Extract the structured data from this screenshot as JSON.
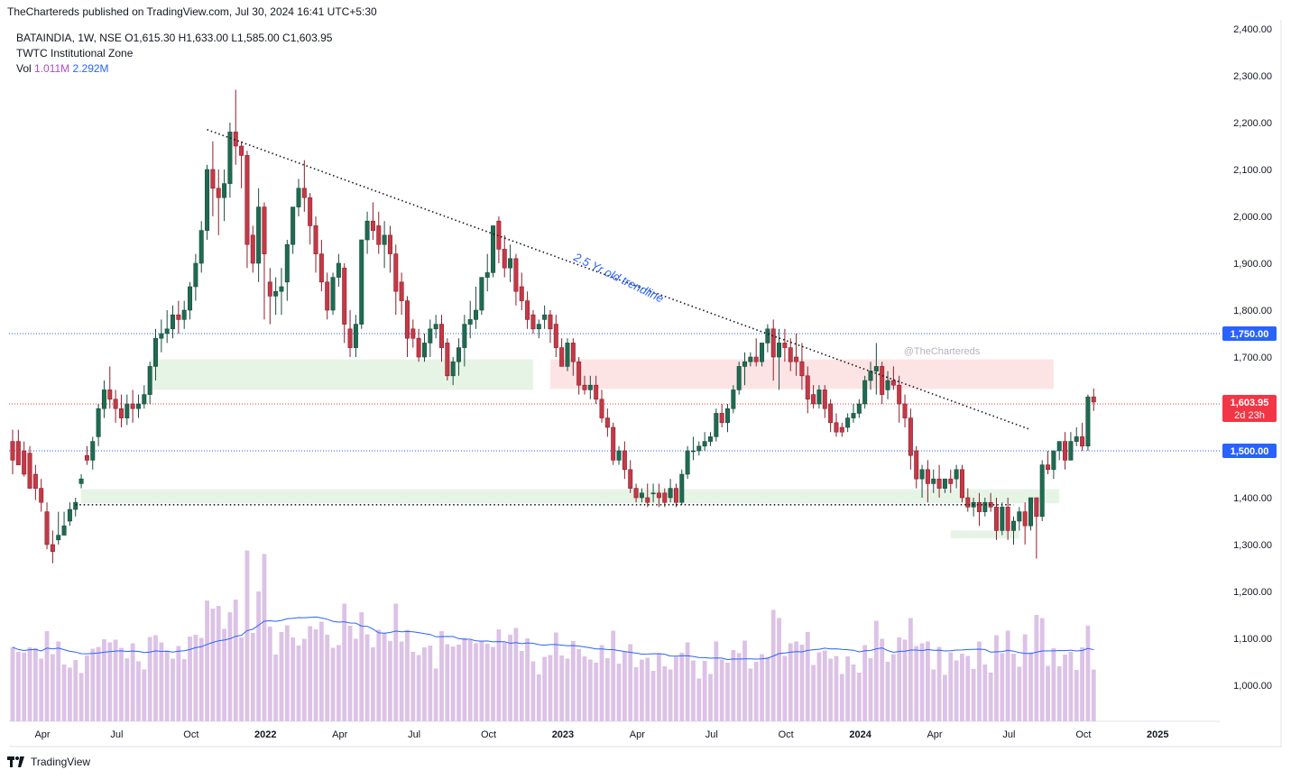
{
  "header": {
    "published": "TheChartereds published on TradingView.com, Jul 30, 2024 16:41 UTC+5:30"
  },
  "legend": {
    "symbol_line": "BATAINDIA, 1W, NSE  O1,615.30  H1,633.00  L1,585.00  C1,603.95",
    "indicator": "TWTC Institutional Zone",
    "vol_label": "Vol",
    "vol_value_1": "1.011M",
    "vol_value_2": "2.292M"
  },
  "footer": {
    "brand": "TradingView"
  },
  "watermark": "@TheChartereds",
  "trendline_label": "2.5 Yr old trendline",
  "colors": {
    "up": "#26a69a",
    "up_dark": "#1e5e4a",
    "down": "#ef5350",
    "down_dark": "#b5323f",
    "candle_body_up": "#1f6b52",
    "candle_body_down": "#c53947",
    "volume": "#dcc2e6",
    "vol_ma": "#2962ff",
    "last_price": "#f23645",
    "level_blue": "#2962ff",
    "zone_green": "#e6f4e6",
    "zone_red": "#fde4e4"
  },
  "chart_data": {
    "type": "candlestick",
    "symbol": "BATAINDIA",
    "timeframe": "1W",
    "exchange": "NSE",
    "ohlc_last": {
      "open": 1615.3,
      "high": 1633.0,
      "low": 1585.0,
      "close": 1603.95
    },
    "y_axis": {
      "range": [
        920,
        2420
      ],
      "ticks": [
        "2,400.00",
        "2,300.00",
        "2,200.00",
        "2,100.00",
        "2,000.00",
        "1,900.00",
        "1,800.00",
        "1,700.00",
        "1,600.00",
        "1,500.00",
        "1,400.00",
        "1,300.00",
        "1,200.00",
        "1,100.00",
        "1,000.00"
      ],
      "tick_values": [
        2400,
        2300,
        2200,
        2100,
        2000,
        1900,
        1800,
        1700,
        1600,
        1500,
        1400,
        1300,
        1200,
        1100,
        1000
      ]
    },
    "x_axis": {
      "labels": [
        "Apr",
        "Jul",
        "Oct",
        "2022",
        "Apr",
        "Jul",
        "Oct",
        "2023",
        "Apr",
        "Jul",
        "Oct",
        "2024",
        "Apr",
        "Jul",
        "Oct",
        "2025"
      ],
      "label_weeks": [
        0,
        13,
        26,
        39,
        52,
        65,
        78,
        91,
        104,
        117,
        130,
        143,
        156,
        169,
        182,
        195
      ],
      "bold": [
        false,
        false,
        false,
        true,
        false,
        false,
        false,
        true,
        false,
        false,
        false,
        true,
        false,
        false,
        false,
        true
      ]
    },
    "price_labels": [
      {
        "text": "1,750.00",
        "value": 1750,
        "kind": "level"
      },
      {
        "text": "1,603.95",
        "value": 1603.95,
        "kind": "last",
        "countdown": "2d 23h"
      },
      {
        "text": "1,500.00",
        "value": 1500,
        "kind": "level"
      }
    ],
    "horizontal_levels": [
      1750,
      1600,
      1500
    ],
    "zones": [
      {
        "kind": "demand",
        "week_from": 24,
        "week_to": 91,
        "low": 1630,
        "high": 1695
      },
      {
        "kind": "supply",
        "week_from": 94,
        "week_to": 182,
        "low": 1632,
        "high": 1695
      },
      {
        "kind": "demand",
        "week_from": 12,
        "week_to": 183,
        "low": 1388,
        "high": 1418
      },
      {
        "kind": "demand",
        "week_from": 164,
        "week_to": 176,
        "low": 1313,
        "high": 1330
      }
    ],
    "trendlines": [
      {
        "from": [
          34,
          2185
        ],
        "to": [
          178,
          1545
        ]
      },
      {
        "from": [
          11,
          1385
        ],
        "to": [
          175,
          1385
        ]
      }
    ],
    "first_week_date": "2021-03-01",
    "candles": [
      [
        1520,
        1545,
        1480,
        1450
      ],
      [
        1520,
        1545,
        1470,
        1485
      ],
      [
        1500,
        1520,
        1450,
        1445
      ],
      [
        1495,
        1510,
        1420,
        1450
      ],
      [
        1450,
        1470,
        1420,
        1395
      ],
      [
        1420,
        1440,
        1390,
        1370
      ],
      [
        1370,
        1390,
        1300,
        1290
      ],
      [
        1300,
        1330,
        1285,
        1260
      ],
      [
        1310,
        1370,
        1320,
        1300
      ],
      [
        1320,
        1370,
        1340,
        1330
      ],
      [
        1350,
        1390,
        1375,
        1340
      ],
      [
        1375,
        1400,
        1390,
        1360
      ],
      [
        1430,
        1450,
        1440,
        1420
      ],
      [
        1490,
        1510,
        1480,
        1470
      ],
      [
        1480,
        1530,
        1520,
        1460
      ],
      [
        1530,
        1600,
        1590,
        1510
      ],
      [
        1590,
        1650,
        1630,
        1570
      ],
      [
        1630,
        1680,
        1610,
        1590
      ],
      [
        1610,
        1630,
        1590,
        1560
      ],
      [
        1590,
        1620,
        1570,
        1550
      ],
      [
        1570,
        1620,
        1600,
        1555
      ],
      [
        1600,
        1630,
        1590,
        1560
      ],
      [
        1590,
        1620,
        1600,
        1570
      ],
      [
        1600,
        1640,
        1620,
        1590
      ],
      [
        1620,
        1690,
        1680,
        1600
      ],
      [
        1680,
        1760,
        1740,
        1650
      ],
      [
        1740,
        1780,
        1750,
        1710
      ],
      [
        1750,
        1800,
        1760,
        1730
      ],
      [
        1760,
        1810,
        1790,
        1740
      ],
      [
        1790,
        1820,
        1780,
        1750
      ],
      [
        1780,
        1820,
        1800,
        1760
      ],
      [
        1800,
        1860,
        1850,
        1780
      ],
      [
        1850,
        1920,
        1900,
        1820
      ],
      [
        1900,
        1990,
        1970,
        1880
      ],
      [
        1970,
        2110,
        2100,
        1950
      ],
      [
        2100,
        2160,
        2060,
        2000
      ],
      [
        2060,
        2100,
        2040,
        1960
      ],
      [
        2040,
        2100,
        2070,
        1990
      ],
      [
        2070,
        2200,
        2180,
        2040
      ],
      [
        2180,
        2270,
        2150,
        2110
      ],
      [
        2150,
        2160,
        2130,
        2060
      ],
      [
        2130,
        2140,
        1940,
        1890
      ],
      [
        1960,
        1980,
        1900,
        1880
      ],
      [
        1900,
        2060,
        2020,
        1860
      ],
      [
        2020,
        2030,
        1920,
        1780
      ],
      [
        1860,
        1890,
        1830,
        1770
      ],
      [
        1830,
        1870,
        1840,
        1790
      ],
      [
        1840,
        1890,
        1850,
        1790
      ],
      [
        1860,
        1950,
        1940,
        1820
      ],
      [
        1940,
        2000,
        2020,
        1920
      ],
      [
        2020,
        2080,
        2060,
        2000
      ],
      [
        2060,
        2120,
        2040,
        2010
      ],
      [
        2040,
        2050,
        1980,
        1940
      ],
      [
        1980,
        2000,
        1920,
        1880
      ],
      [
        1920,
        1950,
        1860,
        1840
      ],
      [
        1860,
        1880,
        1800,
        1780
      ],
      [
        1800,
        1880,
        1870,
        1790
      ],
      [
        1870,
        1920,
        1900,
        1850
      ],
      [
        1890,
        1900,
        1770,
        1730
      ],
      [
        1760,
        1800,
        1720,
        1700
      ],
      [
        1720,
        1790,
        1770,
        1700
      ],
      [
        1770,
        1920,
        1950,
        1760
      ],
      [
        1950,
        2010,
        1990,
        1920
      ],
      [
        1990,
        2030,
        1970,
        1950
      ],
      [
        1980,
        2010,
        1940,
        1920
      ],
      [
        1940,
        1990,
        1960,
        1890
      ],
      [
        1960,
        1980,
        1920,
        1880
      ],
      [
        1920,
        1940,
        1840,
        1790
      ],
      [
        1860,
        1880,
        1820,
        1790
      ],
      [
        1820,
        1830,
        1740,
        1700
      ],
      [
        1760,
        1780,
        1740,
        1720
      ],
      [
        1740,
        1760,
        1700,
        1690
      ],
      [
        1700,
        1750,
        1730,
        1690
      ],
      [
        1730,
        1780,
        1760,
        1700
      ],
      [
        1760,
        1790,
        1770,
        1740
      ],
      [
        1770,
        1790,
        1720,
        1690
      ],
      [
        1730,
        1740,
        1660,
        1650
      ],
      [
        1660,
        1700,
        1690,
        1640
      ],
      [
        1690,
        1740,
        1720,
        1660
      ],
      [
        1720,
        1790,
        1770,
        1680
      ],
      [
        1770,
        1820,
        1780,
        1740
      ],
      [
        1780,
        1850,
        1800,
        1760
      ],
      [
        1800,
        1860,
        1870,
        1790
      ],
      [
        1870,
        1920,
        1880,
        1840
      ],
      [
        1880,
        1960,
        1980,
        1870
      ],
      [
        1990,
        2000,
        1930,
        1900
      ],
      [
        1930,
        1960,
        1890,
        1870
      ],
      [
        1890,
        1940,
        1910,
        1860
      ],
      [
        1910,
        1920,
        1840,
        1810
      ],
      [
        1850,
        1880,
        1820,
        1800
      ],
      [
        1820,
        1840,
        1780,
        1760
      ],
      [
        1790,
        1800,
        1760,
        1750
      ],
      [
        1760,
        1780,
        1770,
        1740
      ],
      [
        1780,
        1810,
        1790,
        1760
      ],
      [
        1790,
        1800,
        1760,
        1730
      ],
      [
        1770,
        1790,
        1720,
        1700
      ],
      [
        1720,
        1740,
        1680,
        1680
      ],
      [
        1680,
        1740,
        1730,
        1670
      ],
      [
        1730,
        1740,
        1690,
        1660
      ],
      [
        1690,
        1700,
        1640,
        1620
      ],
      [
        1640,
        1660,
        1630,
        1620
      ],
      [
        1630,
        1660,
        1640,
        1610
      ],
      [
        1640,
        1660,
        1610,
        1600
      ],
      [
        1610,
        1630,
        1570,
        1560
      ],
      [
        1570,
        1590,
        1550,
        1530
      ],
      [
        1550,
        1560,
        1480,
        1470
      ],
      [
        1480,
        1510,
        1500,
        1470
      ],
      [
        1500,
        1520,
        1460,
        1440
      ],
      [
        1460,
        1480,
        1420,
        1410
      ],
      [
        1420,
        1430,
        1400,
        1390
      ],
      [
        1400,
        1420,
        1410,
        1390
      ],
      [
        1400,
        1430,
        1390,
        1380
      ],
      [
        1410,
        1430,
        1410,
        1390
      ],
      [
        1410,
        1430,
        1400,
        1380
      ],
      [
        1410,
        1420,
        1390,
        1380
      ],
      [
        1400,
        1440,
        1420,
        1390
      ],
      [
        1420,
        1430,
        1390,
        1380
      ],
      [
        1390,
        1460,
        1450,
        1385
      ],
      [
        1450,
        1510,
        1500,
        1440
      ],
      [
        1500,
        1530,
        1500,
        1480
      ],
      [
        1500,
        1520,
        1510,
        1490
      ],
      [
        1510,
        1540,
        1520,
        1500
      ],
      [
        1520,
        1540,
        1530,
        1510
      ],
      [
        1530,
        1590,
        1580,
        1520
      ],
      [
        1580,
        1600,
        1560,
        1550
      ],
      [
        1560,
        1600,
        1590,
        1540
      ],
      [
        1590,
        1640,
        1630,
        1580
      ],
      [
        1630,
        1690,
        1680,
        1620
      ],
      [
        1680,
        1710,
        1690,
        1640
      ],
      [
        1690,
        1710,
        1700,
        1680
      ],
      [
        1700,
        1740,
        1690,
        1680
      ],
      [
        1690,
        1730,
        1730,
        1680
      ],
      [
        1730,
        1770,
        1760,
        1710
      ],
      [
        1760,
        1780,
        1700,
        1650
      ],
      [
        1700,
        1760,
        1730,
        1630
      ],
      [
        1730,
        1760,
        1720,
        1690
      ],
      [
        1720,
        1740,
        1690,
        1670
      ],
      [
        1700,
        1750,
        1690,
        1660
      ],
      [
        1690,
        1730,
        1660,
        1630
      ],
      [
        1660,
        1680,
        1610,
        1580
      ],
      [
        1620,
        1640,
        1600,
        1590
      ],
      [
        1600,
        1640,
        1630,
        1590
      ],
      [
        1630,
        1640,
        1590,
        1570
      ],
      [
        1600,
        1610,
        1560,
        1540
      ],
      [
        1560,
        1580,
        1540,
        1530
      ],
      [
        1550,
        1560,
        1540,
        1530
      ],
      [
        1550,
        1580,
        1570,
        1540
      ],
      [
        1570,
        1600,
        1580,
        1560
      ],
      [
        1580,
        1610,
        1600,
        1570
      ],
      [
        1600,
        1660,
        1650,
        1590
      ],
      [
        1650,
        1690,
        1670,
        1630
      ],
      [
        1670,
        1730,
        1680,
        1620
      ],
      [
        1680,
        1690,
        1620,
        1600
      ],
      [
        1630,
        1670,
        1650,
        1610
      ],
      [
        1650,
        1680,
        1640,
        1630
      ],
      [
        1640,
        1660,
        1600,
        1560
      ],
      [
        1600,
        1620,
        1570,
        1550
      ],
      [
        1570,
        1590,
        1490,
        1460
      ],
      [
        1500,
        1510,
        1440,
        1420
      ],
      [
        1440,
        1470,
        1460,
        1400
      ],
      [
        1460,
        1480,
        1430,
        1390
      ],
      [
        1430,
        1460,
        1440,
        1410
      ],
      [
        1440,
        1470,
        1420,
        1400
      ],
      [
        1420,
        1440,
        1440,
        1410
      ],
      [
        1440,
        1460,
        1430,
        1410
      ],
      [
        1440,
        1470,
        1460,
        1420
      ],
      [
        1460,
        1470,
        1400,
        1390
      ],
      [
        1400,
        1420,
        1380,
        1370
      ],
      [
        1380,
        1400,
        1390,
        1360
      ],
      [
        1390,
        1410,
        1370,
        1340
      ],
      [
        1370,
        1400,
        1390,
        1360
      ],
      [
        1390,
        1410,
        1380,
        1370
      ],
      [
        1380,
        1400,
        1330,
        1310
      ],
      [
        1330,
        1390,
        1380,
        1320
      ],
      [
        1380,
        1400,
        1330,
        1310
      ],
      [
        1330,
        1360,
        1350,
        1300
      ],
      [
        1350,
        1380,
        1370,
        1330
      ],
      [
        1370,
        1390,
        1340,
        1300
      ],
      [
        1340,
        1400,
        1400,
        1330
      ],
      [
        1400,
        1390,
        1360,
        1270
      ],
      [
        1360,
        1480,
        1470,
        1350
      ],
      [
        1470,
        1500,
        1460,
        1450
      ],
      [
        1460,
        1500,
        1500,
        1440
      ],
      [
        1500,
        1520,
        1520,
        1480
      ],
      [
        1520,
        1540,
        1480,
        1460
      ],
      [
        1480,
        1540,
        1520,
        1480
      ],
      [
        1520,
        1550,
        1530,
        1510
      ],
      [
        1530,
        1560,
        1510,
        1500
      ],
      [
        1510,
        1620,
        1615,
        1500
      ],
      [
        1615,
        1633,
        1604,
        1585
      ]
    ]
  }
}
